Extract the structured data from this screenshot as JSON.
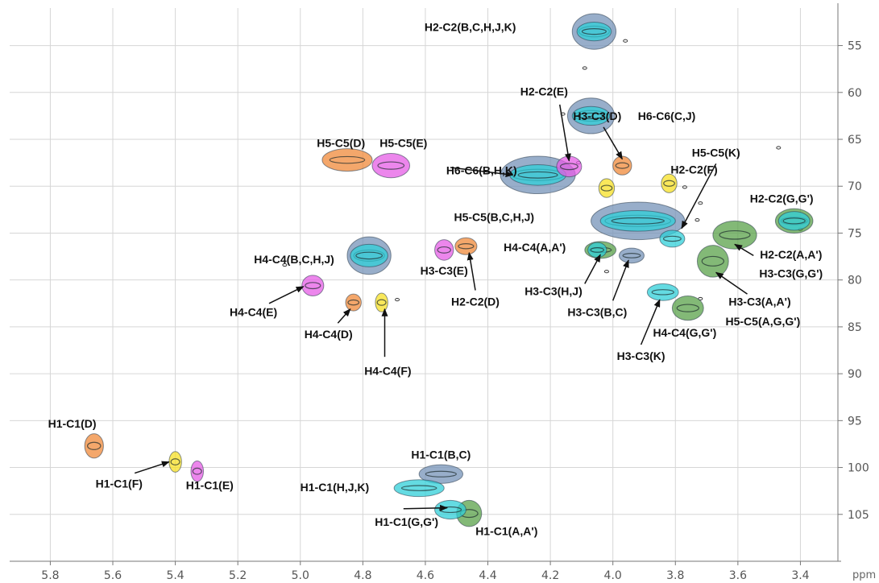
{
  "chart_data": {
    "type": "scatter",
    "title": "",
    "x_unit": "ppm",
    "xlim": [
      5.93,
      3.28
    ],
    "ylim": [
      51,
      110
    ],
    "x_ticks": [
      5.8,
      5.6,
      5.4,
      5.2,
      5.0,
      4.8,
      4.6,
      4.4,
      4.2,
      4.0,
      3.8,
      3.6,
      3.4
    ],
    "x_tick_labels": [
      "5.8",
      "5.6",
      "5.4",
      "5.2",
      "5.0",
      "4.8",
      "4.6",
      "4.4",
      "4.2",
      "4.0",
      "3.8",
      "3.6",
      "3.4"
    ],
    "y_ticks": [
      55,
      60,
      65,
      70,
      75,
      80,
      85,
      90,
      95,
      100,
      105
    ],
    "y_tick_labels": [
      "55",
      "60",
      "65",
      "70",
      "75",
      "80",
      "85",
      "90",
      "95",
      "100",
      "105"
    ],
    "grid": true,
    "colors": {
      "blue": "#7593b8",
      "cyan": "#30cfd8",
      "green": "#5aa24a",
      "orange": "#f08a3a",
      "magenta": "#e65ee6",
      "yellow": "#f7e024",
      "grid": "#d6d6d6",
      "axis": "#777777"
    },
    "peaks": [
      {
        "x": 4.06,
        "y": 53.5,
        "rx": 0.07,
        "ry": 1.9,
        "color": "blue"
      },
      {
        "x": 4.06,
        "y": 53.5,
        "rx": 0.055,
        "ry": 1.0,
        "color": "cyan"
      },
      {
        "x": 4.07,
        "y": 62.5,
        "rx": 0.075,
        "ry": 1.9,
        "color": "blue"
      },
      {
        "x": 4.07,
        "y": 62.5,
        "rx": 0.06,
        "ry": 1.0,
        "color": "cyan"
      },
      {
        "x": 4.85,
        "y": 67.2,
        "rx": 0.08,
        "ry": 1.2,
        "color": "orange"
      },
      {
        "x": 4.71,
        "y": 67.8,
        "rx": 0.06,
        "ry": 1.3,
        "color": "magenta"
      },
      {
        "x": 4.24,
        "y": 68.8,
        "rx": 0.12,
        "ry": 2.0,
        "color": "blue"
      },
      {
        "x": 4.24,
        "y": 68.8,
        "rx": 0.09,
        "ry": 1.1,
        "color": "cyan"
      },
      {
        "x": 4.14,
        "y": 67.9,
        "rx": 0.04,
        "ry": 1.1,
        "color": "magenta"
      },
      {
        "x": 3.97,
        "y": 67.8,
        "rx": 0.03,
        "ry": 1.0,
        "color": "orange"
      },
      {
        "x": 4.02,
        "y": 70.2,
        "rx": 0.025,
        "ry": 1.0,
        "color": "yellow"
      },
      {
        "x": 3.82,
        "y": 69.7,
        "rx": 0.025,
        "ry": 1.0,
        "color": "yellow"
      },
      {
        "x": 3.42,
        "y": 73.7,
        "rx": 0.06,
        "ry": 1.3,
        "color": "green"
      },
      {
        "x": 3.42,
        "y": 73.7,
        "rx": 0.05,
        "ry": 1.0,
        "color": "cyan"
      },
      {
        "x": 3.92,
        "y": 73.7,
        "rx": 0.15,
        "ry": 2.0,
        "color": "blue"
      },
      {
        "x": 3.92,
        "y": 73.7,
        "rx": 0.12,
        "ry": 1.1,
        "color": "cyan"
      },
      {
        "x": 3.81,
        "y": 75.6,
        "rx": 0.04,
        "ry": 0.9,
        "color": "cyan"
      },
      {
        "x": 3.61,
        "y": 75.2,
        "rx": 0.07,
        "ry": 1.5,
        "color": "green"
      },
      {
        "x": 3.68,
        "y": 78.0,
        "rx": 0.05,
        "ry": 1.7,
        "color": "green"
      },
      {
        "x": 4.78,
        "y": 77.4,
        "rx": 0.07,
        "ry": 2.0,
        "color": "blue"
      },
      {
        "x": 4.78,
        "y": 77.4,
        "rx": 0.06,
        "ry": 1.2,
        "color": "cyan"
      },
      {
        "x": 4.54,
        "y": 76.8,
        "rx": 0.03,
        "ry": 1.1,
        "color": "magenta"
      },
      {
        "x": 4.47,
        "y": 76.4,
        "rx": 0.035,
        "ry": 0.9,
        "color": "orange"
      },
      {
        "x": 4.04,
        "y": 76.8,
        "rx": 0.05,
        "ry": 0.9,
        "color": "green"
      },
      {
        "x": 4.05,
        "y": 76.8,
        "rx": 0.03,
        "ry": 0.8,
        "color": "cyan"
      },
      {
        "x": 3.94,
        "y": 77.4,
        "rx": 0.04,
        "ry": 0.8,
        "color": "blue"
      },
      {
        "x": 4.96,
        "y": 80.6,
        "rx": 0.035,
        "ry": 1.1,
        "color": "magenta"
      },
      {
        "x": 4.83,
        "y": 82.4,
        "rx": 0.025,
        "ry": 0.9,
        "color": "orange"
      },
      {
        "x": 4.74,
        "y": 82.4,
        "rx": 0.02,
        "ry": 1.0,
        "color": "yellow"
      },
      {
        "x": 3.84,
        "y": 81.3,
        "rx": 0.05,
        "ry": 0.9,
        "color": "cyan"
      },
      {
        "x": 3.76,
        "y": 83.0,
        "rx": 0.05,
        "ry": 1.3,
        "color": "green"
      },
      {
        "x": 5.66,
        "y": 97.7,
        "rx": 0.03,
        "ry": 1.3,
        "color": "orange"
      },
      {
        "x": 5.4,
        "y": 99.4,
        "rx": 0.02,
        "ry": 1.1,
        "color": "yellow"
      },
      {
        "x": 5.33,
        "y": 100.4,
        "rx": 0.02,
        "ry": 1.1,
        "color": "magenta"
      },
      {
        "x": 4.55,
        "y": 100.7,
        "rx": 0.07,
        "ry": 1.0,
        "color": "blue"
      },
      {
        "x": 4.62,
        "y": 102.2,
        "rx": 0.08,
        "ry": 0.9,
        "color": "cyan"
      },
      {
        "x": 4.46,
        "y": 104.9,
        "rx": 0.04,
        "ry": 1.4,
        "color": "green"
      },
      {
        "x": 4.52,
        "y": 104.5,
        "rx": 0.05,
        "ry": 1.0,
        "color": "cyan"
      }
    ],
    "annotations": [
      {
        "text": "H2-C2(B,C,H,J,K)",
        "x": 4.31,
        "y": 53.0,
        "anchor": "end"
      },
      {
        "text": "H2-C2(E)",
        "x": 4.22,
        "y": 59.9,
        "anchor": "middle"
      },
      {
        "text": "H3-C3(D)",
        "x": 4.05,
        "y": 62.5,
        "anchor": "middle"
      },
      {
        "text": "H6-C6(C,J)",
        "x": 3.92,
        "y": 62.5,
        "anchor": "start"
      },
      {
        "text": "H5-C5(D)",
        "x": 4.87,
        "y": 65.4,
        "anchor": "middle"
      },
      {
        "text": "H5-C5(E)",
        "x": 4.67,
        "y": 65.4,
        "anchor": "middle"
      },
      {
        "text": "H6-C6(B,H,K)",
        "x": 4.42,
        "y": 68.3,
        "anchor": "middle"
      },
      {
        "text": "H5-C5(K)",
        "x": 3.67,
        "y": 66.4,
        "anchor": "middle"
      },
      {
        "text": "H2-C2(F)",
        "x": 3.74,
        "y": 68.2,
        "anchor": "middle"
      },
      {
        "text": "H2-C2(G,G')",
        "x": 3.46,
        "y": 71.3,
        "anchor": "middle"
      },
      {
        "text": "H5-C5(B,C,H,J)",
        "x": 4.38,
        "y": 73.3,
        "anchor": "middle"
      },
      {
        "text": "H4-C4(A,A')",
        "x": 4.25,
        "y": 76.5,
        "anchor": "middle"
      },
      {
        "text": "H2-C2(A,A')",
        "x": 3.43,
        "y": 77.3,
        "anchor": "middle"
      },
      {
        "text": "H3-C3(G,G')",
        "x": 3.43,
        "y": 79.3,
        "anchor": "middle"
      },
      {
        "text": "H4-C4(B,C,H,J)",
        "x": 5.02,
        "y": 77.8,
        "anchor": "middle"
      },
      {
        "text": "H3-C3(E)",
        "x": 4.54,
        "y": 79.0,
        "anchor": "middle"
      },
      {
        "text": "H3-C3(H,J)",
        "x": 4.19,
        "y": 81.2,
        "anchor": "middle"
      },
      {
        "text": "H3-C3(A,A')",
        "x": 3.53,
        "y": 82.3,
        "anchor": "middle"
      },
      {
        "text": "H2-C2(D)",
        "x": 4.44,
        "y": 82.3,
        "anchor": "middle"
      },
      {
        "text": "H4-C4(E)",
        "x": 5.15,
        "y": 83.4,
        "anchor": "middle"
      },
      {
        "text": "H3-C3(B,C)",
        "x": 4.05,
        "y": 83.4,
        "anchor": "middle"
      },
      {
        "text": "H5-C5(A,G,G')",
        "x": 3.52,
        "y": 84.4,
        "anchor": "middle"
      },
      {
        "text": "H4-C4(G,G')",
        "x": 3.77,
        "y": 85.6,
        "anchor": "middle"
      },
      {
        "text": "H4-C4(D)",
        "x": 4.91,
        "y": 85.8,
        "anchor": "middle"
      },
      {
        "text": "H3-C3(K)",
        "x": 3.91,
        "y": 88.1,
        "anchor": "middle"
      },
      {
        "text": "H4-C4(F)",
        "x": 4.72,
        "y": 89.7,
        "anchor": "middle"
      },
      {
        "text": "H1-C1(D)",
        "x": 5.73,
        "y": 95.3,
        "anchor": "middle"
      },
      {
        "text": "H1-C1(B,C)",
        "x": 4.55,
        "y": 98.6,
        "anchor": "middle"
      },
      {
        "text": "H1-C1(F)",
        "x": 5.58,
        "y": 101.7,
        "anchor": "middle"
      },
      {
        "text": "H1-C1(E)",
        "x": 5.29,
        "y": 101.9,
        "anchor": "middle"
      },
      {
        "text": "H1-C1(H,J,K)",
        "x": 4.89,
        "y": 102.1,
        "anchor": "middle"
      },
      {
        "text": "H1-C1(G,G')",
        "x": 4.66,
        "y": 105.8,
        "anchor": "middle"
      },
      {
        "text": "H1-C1(A,A')",
        "x": 4.34,
        "y": 106.8,
        "anchor": "middle"
      }
    ],
    "arrows": [
      {
        "from": [
          4.17,
          61.3
        ],
        "to": [
          4.14,
          67.3
        ]
      },
      {
        "from": [
          4.03,
          63.7
        ],
        "to": [
          3.97,
          67.1
        ]
      },
      {
        "from": [
          4.52,
          68.0
        ],
        "to": [
          4.32,
          68.8
        ]
      },
      {
        "from": [
          3.67,
          67.6
        ],
        "to": [
          3.78,
          74.5
        ]
      },
      {
        "from": [
          3.55,
          77.4
        ],
        "to": [
          3.61,
          76.2
        ]
      },
      {
        "from": [
          3.57,
          81.5
        ],
        "to": [
          3.67,
          79.2
        ]
      },
      {
        "from": [
          4.09,
          80.4
        ],
        "to": [
          4.04,
          77.3
        ]
      },
      {
        "from": [
          4.0,
          82.2
        ],
        "to": [
          3.95,
          77.9
        ]
      },
      {
        "from": [
          3.91,
          86.9
        ],
        "to": [
          3.85,
          82.1
        ]
      },
      {
        "from": [
          4.44,
          81.1
        ],
        "to": [
          4.46,
          77.1
        ]
      },
      {
        "from": [
          5.1,
          82.5
        ],
        "to": [
          4.99,
          80.7
        ]
      },
      {
        "from": [
          4.88,
          84.6
        ],
        "to": [
          4.84,
          83.1
        ]
      },
      {
        "from": [
          4.73,
          88.2
        ],
        "to": [
          4.73,
          83.1
        ]
      },
      {
        "from": [
          5.53,
          100.6
        ],
        "to": [
          5.42,
          99.4
        ]
      },
      {
        "from": [
          4.67,
          104.4
        ],
        "to": [
          4.53,
          104.3
        ]
      }
    ],
    "noise_points": [
      [
        4.16,
        62.3
      ],
      [
        3.96,
        54.5
      ],
      [
        4.09,
        57.4
      ],
      [
        4.11,
        67.5
      ],
      [
        3.77,
        70.1
      ],
      [
        3.72,
        71.8
      ],
      [
        3.73,
        73.6
      ],
      [
        3.4,
        74.6
      ],
      [
        4.02,
        79.1
      ],
      [
        4.69,
        82.1
      ],
      [
        5.05,
        78.4
      ],
      [
        3.72,
        82.0
      ],
      [
        3.47,
        65.9
      ]
    ]
  }
}
